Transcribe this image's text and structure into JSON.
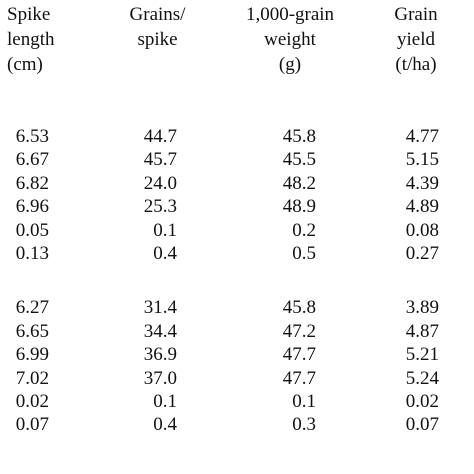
{
  "table": {
    "headers": [
      "Spike\nlength\n(cm)",
      "Grains/\nspike",
      "1,000-grain\nweight\n(g)",
      "Grain\nyield\n(t/ha)"
    ],
    "sections": [
      {
        "rows": [
          [
            "6.53",
            "44.7",
            "45.8",
            "4.77"
          ],
          [
            "6.67",
            "45.7",
            "45.5",
            "5.15"
          ],
          [
            "6.82",
            "24.0",
            "48.2",
            "4.39"
          ],
          [
            "6.96",
            "25.3",
            "48.9",
            "4.89"
          ],
          [
            "0.05",
            "0.1",
            "0.2",
            "0.08"
          ],
          [
            "0.13",
            "0.4",
            "0.5",
            "0.27"
          ]
        ]
      },
      {
        "rows": [
          [
            "6.27",
            "31.4",
            "45.8",
            "3.89"
          ],
          [
            "6.65",
            "34.4",
            "47.2",
            "4.87"
          ],
          [
            "6.99",
            "36.9",
            "47.7",
            "5.21"
          ],
          [
            "7.02",
            "37.0",
            "47.7",
            "5.24"
          ],
          [
            "0.02",
            "0.1",
            "0.1",
            "0.02"
          ],
          [
            "0.07",
            "0.4",
            "0.3",
            "0.07"
          ]
        ]
      }
    ]
  }
}
